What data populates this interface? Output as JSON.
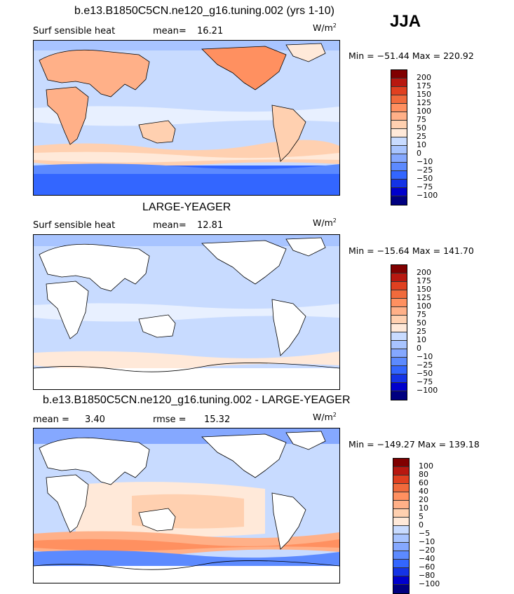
{
  "season": "JJA",
  "units": "W/m",
  "units_power": "2",
  "colors": {
    "std": [
      "#000080",
      "#0000CC",
      "#1433E6",
      "#3366FF",
      "#5C8AFF",
      "#85A8FF",
      "#A8C4FF",
      "#C8DBFF",
      "#E8F0FF",
      "#FFE9D9",
      "#FFD0B0",
      "#FFB088",
      "#FF9060",
      "#F06A3C",
      "#E04020",
      "#B81810",
      "#800000"
    ],
    "diff": [
      "#000080",
      "#0000CC",
      "#1433E6",
      "#3366FF",
      "#5C8AFF",
      "#85A8FF",
      "#A8C4FF",
      "#C8DBFF",
      "#E8F0FF",
      "#FFE9D9",
      "#FFD0B0",
      "#FFB088",
      "#FF9060",
      "#F06A3C",
      "#E04020",
      "#B81810",
      "#800000"
    ]
  },
  "chart_data": [
    {
      "type": "heatmap",
      "title": "b.e13.B1850C5CN.ne120_g16.tuning.002 (yrs 1-10)",
      "variable": "Surf sensible heat",
      "mean_label": "mean=",
      "mean": "16.21",
      "min_max": "Min = −51.44 Max = 220.92",
      "min": -51.44,
      "max": 220.92,
      "levels": [
        "200",
        "175",
        "150",
        "125",
        "100",
        "75",
        "50",
        "25",
        "10",
        "0",
        "−10",
        "−25",
        "−50",
        "−75",
        "−100"
      ]
    },
    {
      "type": "heatmap",
      "title": "LARGE-YEAGER",
      "variable": "Surf sensible heat",
      "mean_label": "mean=",
      "mean": "12.81",
      "min_max": "Min = −15.64 Max = 141.70",
      "min": -15.64,
      "max": 141.7,
      "levels": [
        "200",
        "175",
        "150",
        "125",
        "100",
        "75",
        "50",
        "25",
        "10",
        "0",
        "−10",
        "−25",
        "−50",
        "−75",
        "−100"
      ]
    },
    {
      "type": "heatmap",
      "title": "b.e13.B1850C5CN.ne120_g16.tuning.002 - LARGE-YEAGER",
      "mean_label": "mean =",
      "mean": "3.40",
      "rmse_label": "rmse =",
      "rmse": "15.32",
      "min_max": "Min = −149.27 Max = 139.18",
      "min": -149.27,
      "max": 139.18,
      "levels": [
        "100",
        "80",
        "60",
        "40",
        "20",
        "10",
        "5",
        "0",
        "−5",
        "−10",
        "−20",
        "−40",
        "−60",
        "−80",
        "−100"
      ]
    }
  ]
}
